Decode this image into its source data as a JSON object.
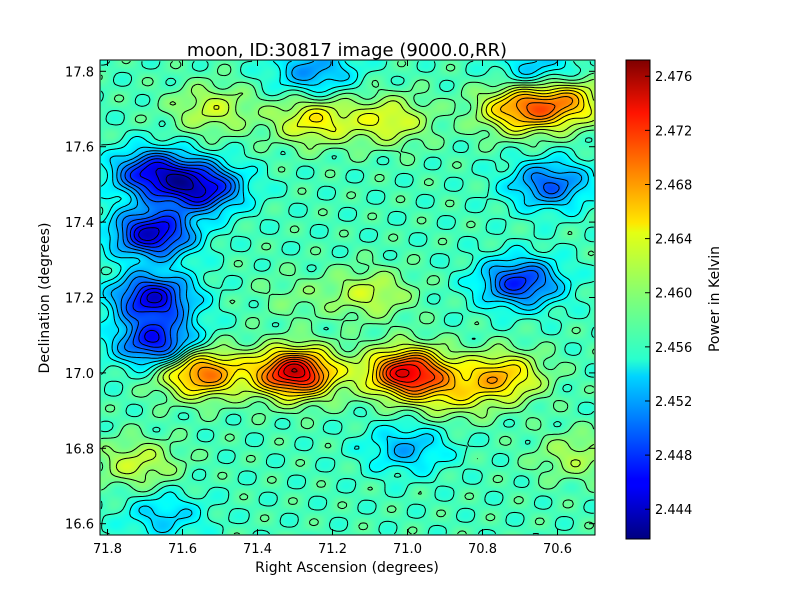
{
  "chart_data": {
    "type": "heatmap",
    "title": "moon, ID:30817 image (9000.0,RR)",
    "xlabel": "Right Ascension (degrees)",
    "ylabel": "Declination (degrees)",
    "colorbar_label": "Power in Kelvin",
    "xlim": [
      71.82,
      70.5
    ],
    "ylim": [
      16.57,
      17.83
    ],
    "x_ticks": [
      71.8,
      71.6,
      71.4,
      71.2,
      71.0,
      70.8,
      70.6
    ],
    "x_tick_labels": [
      "71.8",
      "71.6",
      "71.4",
      "71.2",
      "71.0",
      "70.8",
      "70.6"
    ],
    "y_ticks": [
      16.6,
      16.8,
      17.0,
      17.2,
      17.4,
      17.6,
      17.8
    ],
    "y_tick_labels": [
      "16.6",
      "16.8",
      "17.0",
      "17.2",
      "17.4",
      "17.6",
      "17.8"
    ],
    "colorbar_range": [
      2.4418,
      2.4772
    ],
    "colorbar_ticks": [
      2.444,
      2.448,
      2.452,
      2.456,
      2.46,
      2.464,
      2.468,
      2.472,
      2.476
    ],
    "colorbar_tick_labels": [
      "2.444",
      "2.448",
      "2.452",
      "2.456",
      "2.460",
      "2.464",
      "2.468",
      "2.472",
      "2.476"
    ],
    "colormap": "jet",
    "contours": true,
    "baseline": 2.4575,
    "features": [
      {
        "ra": 71.3,
        "dec": 17.0,
        "value": 2.4745
      },
      {
        "ra": 71.0,
        "dec": 17.0,
        "value": 2.4735
      },
      {
        "ra": 71.55,
        "dec": 17.0,
        "value": 2.469
      },
      {
        "ra": 70.75,
        "dec": 16.99,
        "value": 2.466
      },
      {
        "ra": 70.88,
        "dec": 16.94,
        "value": 2.462
      },
      {
        "ra": 71.1,
        "dec": 17.21,
        "value": 2.462
      },
      {
        "ra": 71.3,
        "dec": 17.2,
        "value": 2.459
      },
      {
        "ra": 70.7,
        "dec": 17.7,
        "value": 2.467
      },
      {
        "ra": 70.58,
        "dec": 17.72,
        "value": 2.466
      },
      {
        "ra": 71.25,
        "dec": 17.67,
        "value": 2.464
      },
      {
        "ra": 71.05,
        "dec": 17.67,
        "value": 2.463
      },
      {
        "ra": 71.52,
        "dec": 17.7,
        "value": 2.462
      },
      {
        "ra": 71.72,
        "dec": 16.76,
        "value": 2.462
      },
      {
        "ra": 70.55,
        "dec": 16.78,
        "value": 2.461
      },
      {
        "ra": 71.68,
        "dec": 17.37,
        "value": 2.4445
      },
      {
        "ra": 71.55,
        "dec": 17.49,
        "value": 2.4455
      },
      {
        "ra": 71.68,
        "dec": 17.53,
        "value": 2.4465
      },
      {
        "ra": 71.68,
        "dec": 17.2,
        "value": 2.4455
      },
      {
        "ra": 71.67,
        "dec": 17.08,
        "value": 2.4465
      },
      {
        "ra": 70.7,
        "dec": 17.24,
        "value": 2.4475
      },
      {
        "ra": 70.62,
        "dec": 17.5,
        "value": 2.4495
      },
      {
        "ra": 71.25,
        "dec": 17.8,
        "value": 2.4515
      },
      {
        "ra": 70.65,
        "dec": 17.8,
        "value": 2.4525
      },
      {
        "ra": 71.0,
        "dec": 16.8,
        "value": 2.4525
      },
      {
        "ra": 71.65,
        "dec": 16.62,
        "value": 2.4535
      }
    ]
  }
}
